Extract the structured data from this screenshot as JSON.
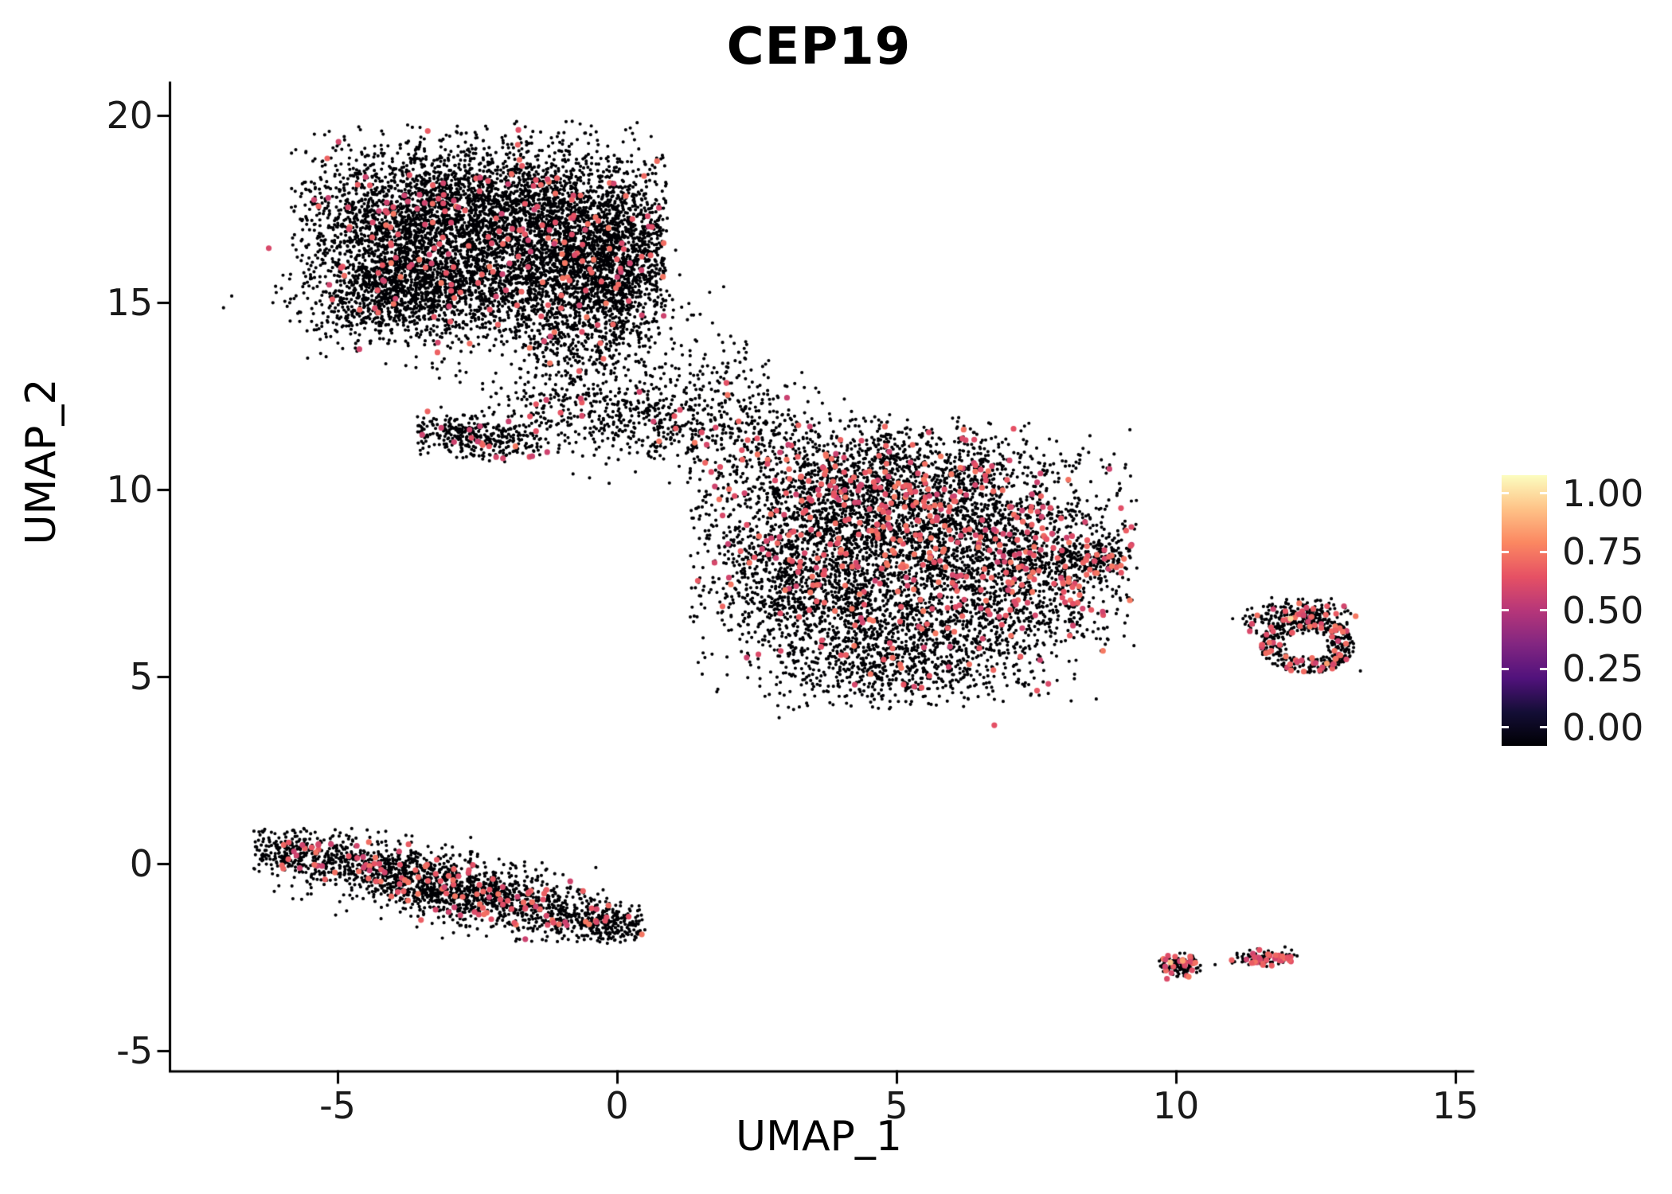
{
  "chart_data": {
    "type": "scatter",
    "title": "CEP19",
    "subtitle": "",
    "xlabel": "UMAP_1",
    "ylabel": "UMAP_2",
    "xlim": [
      -8,
      15.3
    ],
    "ylim": [
      -5.7,
      20.9
    ],
    "grid": false,
    "xticks": {
      "values": [
        -5,
        0,
        5,
        10,
        15
      ],
      "labels": [
        "-5",
        "0",
        "5",
        "10",
        "15"
      ]
    },
    "yticks": {
      "values": [
        -5,
        0,
        5,
        10,
        15,
        20
      ],
      "labels": [
        "-5",
        "0",
        "5",
        "10",
        "15",
        "20"
      ]
    },
    "legend": {
      "type": "colorbar",
      "position": "right",
      "labels": [
        "1.00",
        "0.75",
        "0.50",
        "0.25",
        "0.00"
      ],
      "values": [
        1,
        0.75,
        0.5,
        0.25,
        0
      ]
    },
    "colormap": {
      "name": "magma",
      "stops": [
        [
          0,
          "#000004"
        ],
        [
          0.125,
          "#140E36"
        ],
        [
          0.25,
          "#51127C"
        ],
        [
          0.375,
          "#822681"
        ],
        [
          0.5,
          "#B63679"
        ],
        [
          0.625,
          "#E65164"
        ],
        [
          0.75,
          "#FB8761"
        ],
        [
          0.875,
          "#FEC287"
        ],
        [
          1,
          "#FCFDBF"
        ]
      ]
    },
    "axis_color": "#000000",
    "background_color": "#FFFFFF",
    "point_radius": 2.1,
    "expressing_point_radius": 3.6,
    "point_color_value_range": [
      0.55,
      0.72
    ],
    "seed": 7,
    "clusters": [
      {
        "cluster": "top",
        "cx": -3.7,
        "cy": 16.9,
        "sx": 1.05,
        "sy": 1.15,
        "n": 2100,
        "frac": 0.03,
        "clip": [
          -5.85,
          0.8,
          13.0,
          19.85
        ]
      },
      {
        "cluster": "top",
        "cx": -1.7,
        "cy": 17.5,
        "sx": 1.25,
        "sy": 0.95,
        "n": 1900,
        "frac": 0.03,
        "clip": [
          -5.85,
          0.9,
          13.0,
          19.85
        ]
      },
      {
        "cluster": "top",
        "cx": -0.4,
        "cy": 16.2,
        "sx": 0.85,
        "sy": 1.0,
        "n": 1300,
        "frac": 0.03,
        "clip": [
          -5.5,
          0.9,
          13.0,
          19.8
        ]
      },
      {
        "cluster": "top",
        "cx": -4.0,
        "cy": 15.1,
        "sx": 0.75,
        "sy": 0.55,
        "n": 650,
        "frac": 0.03
      },
      {
        "cluster": "top",
        "cx": -2.0,
        "cy": 15.4,
        "sx": 1.2,
        "sy": 0.7,
        "n": 900,
        "frac": 0.03
      },
      {
        "cluster": "top",
        "cx": -0.7,
        "cy": 14.0,
        "sx": 0.7,
        "sy": 0.8,
        "n": 420,
        "frac": 0.04
      },
      {
        "cluster": "top",
        "cx": 0.15,
        "cy": 16.2,
        "sx": 0.5,
        "sy": 1.0,
        "n": 380,
        "frac": 0.03,
        "clip": [
          -1.5,
          0.85,
          13.5,
          19.5
        ]
      },
      {
        "cluster": "bridge",
        "cx": -2.55,
        "cy": 11.4,
        "sx": 0.75,
        "sy": 0.3,
        "rot": -8,
        "n": 330,
        "frac": 0.05,
        "clip": [
          -3.6,
          -1.3,
          10.8,
          12.0
        ]
      },
      {
        "cluster": "bridge",
        "cx": -1.2,
        "cy": 12.0,
        "sx": 0.8,
        "sy": 0.6,
        "n": 200,
        "frac": 0.04
      },
      {
        "cluster": "bridge",
        "cx": 0.6,
        "cy": 11.7,
        "sx": 0.9,
        "sy": 0.55,
        "n": 260,
        "frac": 0.04
      },
      {
        "cluster": "bridge",
        "cx": 2.1,
        "cy": 11.7,
        "sx": 0.9,
        "sy": 0.6,
        "n": 240,
        "frac": 0.05
      },
      {
        "cluster": "bridge",
        "cx": 1.3,
        "cy": 13.0,
        "sx": 0.8,
        "sy": 0.8,
        "n": 140,
        "frac": 0.03
      },
      {
        "cluster": "center",
        "cx": 4.0,
        "cy": 9.6,
        "sx": 1.3,
        "sy": 1.0,
        "n": 1450,
        "frac": 0.1,
        "clip": [
          1.3,
          9.3,
          4.1,
          12.1
        ]
      },
      {
        "cluster": "center",
        "cx": 6.1,
        "cy": 9.1,
        "sx": 1.35,
        "sy": 1.05,
        "n": 1450,
        "frac": 0.12,
        "clip": [
          1.3,
          9.3,
          4.1,
          12.1
        ]
      },
      {
        "cluster": "center",
        "cx": 3.4,
        "cy": 7.4,
        "sx": 1.1,
        "sy": 1.0,
        "n": 1050,
        "frac": 0.05,
        "clip": [
          1.3,
          9.3,
          4.1,
          12.1
        ]
      },
      {
        "cluster": "center",
        "cx": 5.6,
        "cy": 6.4,
        "sx": 1.35,
        "sy": 0.95,
        "n": 1050,
        "frac": 0.05,
        "clip": [
          1.3,
          9.3,
          4.1,
          12.1
        ]
      },
      {
        "cluster": "center",
        "cx": 7.6,
        "cy": 7.9,
        "sx": 0.9,
        "sy": 0.9,
        "n": 650,
        "frac": 0.1,
        "clip": [
          1.3,
          9.3,
          4.1,
          12.1
        ]
      },
      {
        "cluster": "center",
        "cx": 8.55,
        "cy": 8.2,
        "sx": 0.45,
        "sy": 0.22,
        "n": 140,
        "frac": 0.12,
        "clip": [
          7.6,
          9.25,
          7.6,
          8.8
        ]
      },
      {
        "cluster": "center",
        "cx": 4.9,
        "cy": 5.2,
        "sx": 1.05,
        "sy": 0.55,
        "n": 420,
        "frac": 0.03,
        "clip": [
          1.5,
          8.5,
          4.15,
          7.0
        ]
      },
      {
        "cluster": "center",
        "cx": 5.3,
        "cy": 10.8,
        "sx": 1.3,
        "sy": 0.45,
        "n": 300,
        "frac": 0.08,
        "clip": [
          2.0,
          8.8,
          9.5,
          12.1
        ]
      },
      {
        "cluster": "right-ring",
        "shape": "ring",
        "cx": 12.35,
        "cy": 5.85,
        "r0": 0.32,
        "r1": 0.85,
        "ysquash": 0.9,
        "n": 420,
        "frac": 0.12
      },
      {
        "cluster": "right-ring",
        "cx": 12.3,
        "cy": 6.65,
        "sx": 0.45,
        "sy": 0.22,
        "n": 160,
        "frac": 0.15,
        "clip": [
          11.3,
          13.3,
          6.1,
          7.15
        ]
      },
      {
        "cluster": "right-ring",
        "cx": 11.55,
        "cy": 6.45,
        "sx": 0.3,
        "sy": 0.14,
        "n": 40,
        "frac": 0.1
      },
      {
        "cluster": "bottom-left",
        "cx": -3.0,
        "cy": -0.62,
        "sx": 1.75,
        "sy": 0.42,
        "rot": -19,
        "n": 1750,
        "frac": 0.06,
        "clip": [
          -6.5,
          0.45,
          -2.1,
          0.95
        ]
      },
      {
        "cluster": "bottom-left",
        "cx": -5.8,
        "cy": 0.28,
        "sx": 0.45,
        "sy": 0.28,
        "rot": -15,
        "n": 200,
        "frac": 0.08,
        "clip": [
          -6.5,
          -4.8,
          -0.6,
          0.95
        ]
      },
      {
        "cluster": "bottom-left",
        "cx": -0.1,
        "cy": -1.62,
        "sx": 0.45,
        "sy": 0.22,
        "rot": -15,
        "n": 170,
        "frac": 0.06,
        "clip": [
          -1.2,
          0.5,
          -2.15,
          -1.0
        ]
      },
      {
        "cluster": "bottom-right-a",
        "cx": 10.05,
        "cy": -2.7,
        "sx": 0.22,
        "sy": 0.17,
        "n": 130,
        "frac": 0.18,
        "clip": [
          9.7,
          10.45,
          -3.15,
          -2.3
        ]
      },
      {
        "cluster": "bottom-right-b",
        "cx": 11.5,
        "cy": -2.55,
        "sx": 0.33,
        "sy": 0.11,
        "rot": 5,
        "n": 95,
        "frac": 0.3,
        "clip": [
          10.9,
          12.1,
          -2.9,
          -2.2
        ]
      },
      {
        "cluster": "bottom-right-b",
        "cx": 12.0,
        "cy": -2.48,
        "sx": 0.12,
        "sy": 0.08,
        "n": 25,
        "frac": 0.2
      }
    ],
    "outliers_black": [
      [
        1.0,
        12.5
      ],
      [
        1.8,
        12.9
      ],
      [
        2.6,
        12.4
      ],
      [
        0.2,
        13.2
      ],
      [
        1.4,
        14.0
      ],
      [
        2.2,
        13.4
      ],
      [
        3.1,
        11.9
      ],
      [
        9.0,
        7.1
      ],
      [
        9.3,
        7.9
      ],
      [
        11.2,
        6.55
      ],
      [
        13.3,
        5.15
      ],
      [
        10.7,
        -2.7
      ],
      [
        11.05,
        -2.62
      ],
      [
        6.2,
        4.2
      ],
      [
        7.4,
        4.5
      ],
      [
        2.9,
        3.9
      ],
      [
        1.7,
        5.6
      ]
    ],
    "outliers_colored": [
      [
        6.75,
        3.7,
        0.62
      ],
      [
        9.9,
        -2.64,
        0.88
      ],
      [
        10.12,
        -2.6,
        0.8
      ],
      [
        12.05,
        6.55,
        0.92
      ],
      [
        12.6,
        6.3,
        0.65
      ],
      [
        12.7,
        5.35,
        0.8
      ],
      [
        8.8,
        8.2,
        0.66
      ]
    ]
  }
}
